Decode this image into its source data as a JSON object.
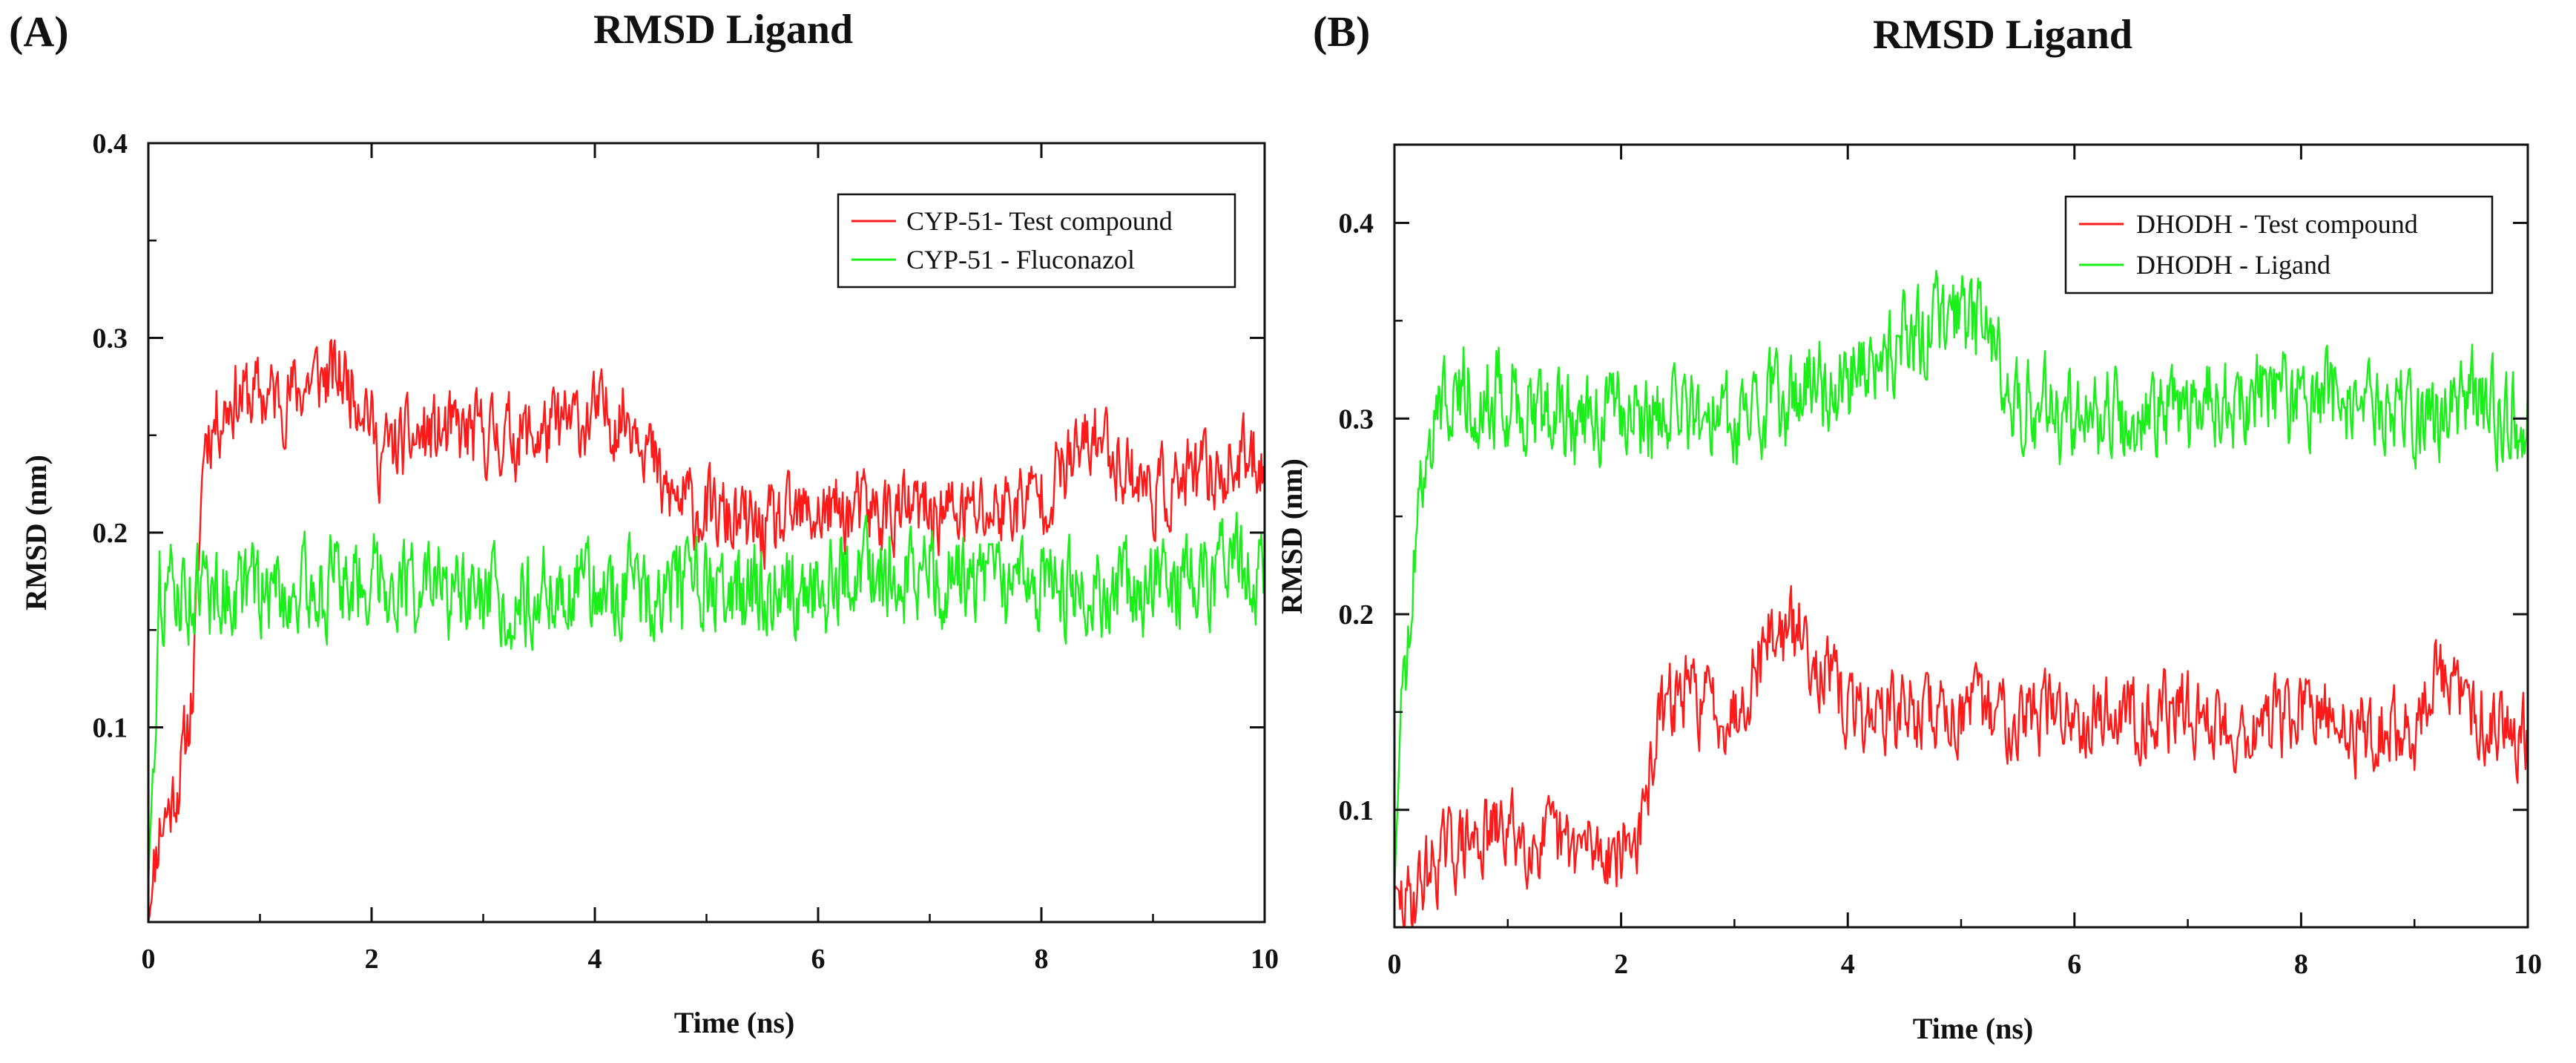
{
  "chart_data": [
    {
      "type": "line",
      "panel_label": "(A)",
      "title": "RMSD Ligand",
      "xlabel": "Time (ns)",
      "ylabel": "RMSD (nm)",
      "xlim": [
        0,
        10
      ],
      "ylim": [
        0.0,
        0.4
      ],
      "xticks": [
        0,
        2,
        4,
        6,
        8,
        10
      ],
      "yticks": [
        0.1,
        0.2,
        0.3,
        0.4
      ],
      "xtick_labels": [
        "0",
        "2",
        "4",
        "6",
        "8",
        "10"
      ],
      "ytick_labels": [
        "0.1",
        "0.2",
        "0.3",
        "0.4"
      ],
      "legend_position": "top-right",
      "series": [
        {
          "name": "CYP-51- Test compound",
          "color": "#ff1a1a",
          "x": [
            0,
            0.1,
            0.2,
            0.3,
            0.4,
            0.5,
            0.75,
            1.0,
            1.25,
            1.5,
            1.75,
            1.95,
            2.05,
            2.5,
            3.0,
            3.5,
            4.0,
            4.4,
            4.6,
            5.0,
            5.5,
            6.0,
            6.5,
            7.0,
            7.5,
            8.0,
            8.5,
            9.0,
            9.5,
            10.0
          ],
          "values": [
            0.0,
            0.05,
            0.06,
            0.08,
            0.12,
            0.25,
            0.27,
            0.27,
            0.27,
            0.28,
            0.28,
            0.27,
            0.24,
            0.25,
            0.25,
            0.25,
            0.26,
            0.26,
            0.22,
            0.21,
            0.2,
            0.21,
            0.21,
            0.21,
            0.21,
            0.22,
            0.25,
            0.22,
            0.23,
            0.24
          ]
        },
        {
          "name": "CYP-51 - Fluconazol",
          "color": "#1aef1a",
          "x": [
            0,
            0.1,
            0.5,
            1.0,
            1.5,
            2.0,
            2.5,
            3.0,
            3.5,
            4.0,
            4.5,
            5.0,
            5.5,
            6.0,
            6.5,
            7.0,
            7.5,
            8.0,
            8.5,
            9.0,
            9.5,
            10.0
          ],
          "values": [
            0.02,
            0.17,
            0.17,
            0.17,
            0.17,
            0.18,
            0.17,
            0.16,
            0.17,
            0.17,
            0.17,
            0.17,
            0.17,
            0.17,
            0.18,
            0.18,
            0.17,
            0.17,
            0.17,
            0.17,
            0.18,
            0.18
          ]
        }
      ]
    },
    {
      "type": "line",
      "panel_label": "(B)",
      "title": "RMSD Ligand",
      "xlabel": "Time (ns)",
      "ylabel": "RMSD (nm)",
      "xlim": [
        0,
        10
      ],
      "ylim": [
        0.04,
        0.44
      ],
      "xticks": [
        0,
        2,
        4,
        6,
        8,
        10
      ],
      "yticks": [
        0.1,
        0.2,
        0.3,
        0.4
      ],
      "xtick_labels": [
        "0",
        "2",
        "4",
        "6",
        "8",
        "10"
      ],
      "ytick_labels": [
        "0.1",
        "0.2",
        "0.3",
        "0.4"
      ],
      "legend_position": "top-right",
      "series": [
        {
          "name": "DHODH - Test compound",
          "color": "#ff1a1a",
          "x": [
            0,
            0.1,
            0.3,
            0.5,
            1.0,
            1.5,
            2.0,
            2.2,
            2.3,
            2.5,
            3.0,
            3.3,
            3.6,
            3.8,
            4.0,
            4.5,
            5.0,
            5.5,
            6.0,
            6.5,
            7.0,
            7.5,
            8.0,
            8.5,
            9.0,
            9.2,
            9.5,
            10.0
          ],
          "values": [
            0.06,
            0.05,
            0.07,
            0.08,
            0.09,
            0.08,
            0.08,
            0.09,
            0.14,
            0.16,
            0.15,
            0.19,
            0.19,
            0.17,
            0.15,
            0.15,
            0.15,
            0.15,
            0.15,
            0.15,
            0.15,
            0.14,
            0.15,
            0.14,
            0.14,
            0.17,
            0.15,
            0.14
          ]
        },
        {
          "name": "DHODH - Ligand",
          "color": "#1aef1a",
          "x": [
            0,
            0.05,
            0.1,
            0.2,
            0.3,
            0.5,
            1.0,
            1.5,
            2.0,
            2.5,
            3.0,
            3.5,
            4.0,
            4.5,
            5.0,
            5.3,
            5.5,
            6.0,
            6.5,
            7.0,
            7.5,
            8.0,
            8.5,
            9.0,
            9.5,
            10.0
          ],
          "values": [
            0.06,
            0.14,
            0.17,
            0.25,
            0.29,
            0.32,
            0.31,
            0.3,
            0.3,
            0.3,
            0.3,
            0.31,
            0.32,
            0.34,
            0.35,
            0.34,
            0.31,
            0.3,
            0.3,
            0.31,
            0.31,
            0.31,
            0.31,
            0.3,
            0.31,
            0.3
          ]
        }
      ]
    }
  ]
}
